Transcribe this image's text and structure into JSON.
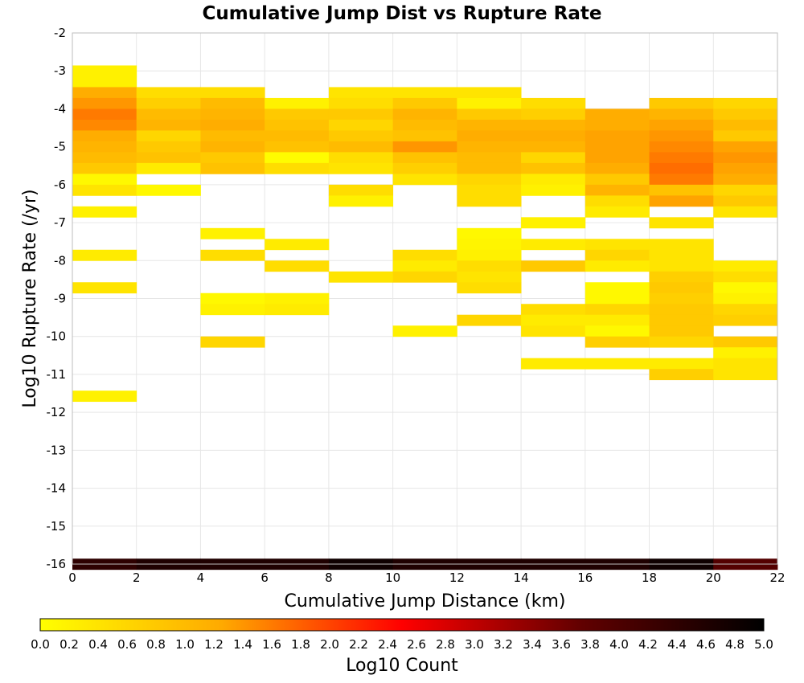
{
  "chart_data": {
    "type": "heatmap",
    "title": "Cumulative Jump Dist vs Rupture Rate",
    "xlabel": "Cumulative Jump Distance (km)",
    "ylabel": "Log10 Rupture Rate (/yr)",
    "xlim": [
      0,
      22
    ],
    "ylim": [
      -16,
      -2
    ],
    "xticks": [
      0,
      2,
      4,
      6,
      8,
      10,
      12,
      14,
      16,
      18,
      20,
      22
    ],
    "yticks": [
      -2,
      -3,
      -4,
      -5,
      -6,
      -7,
      -8,
      -9,
      -10,
      -11,
      -12,
      -13,
      -14,
      -15,
      -16
    ],
    "bin_width_x": 2,
    "bin_height_y": 0.286,
    "grid": true,
    "colorbar": {
      "label": "Log10 Count",
      "min": 0,
      "max": 5,
      "ticks": [
        "0.0",
        "0.2",
        "0.4",
        "0.6",
        "0.8",
        "1.0",
        "1.2",
        "1.4",
        "1.6",
        "1.8",
        "2.0",
        "2.2",
        "2.4",
        "2.6",
        "2.8",
        "3.0",
        "3.2",
        "3.4",
        "3.6",
        "3.8",
        "4.0",
        "4.2",
        "4.4",
        "4.6",
        "4.8",
        "5.0"
      ],
      "colormap": [
        "#ffff00",
        "#ffaa00",
        "#ff0000",
        "#600000",
        "#000000"
      ],
      "placement": "bottom"
    },
    "cells": [
      [
        0,
        -3,
        0.2
      ],
      [
        0,
        -3.286,
        0.2
      ],
      [
        0,
        -3.571,
        1.2
      ],
      [
        0,
        -3.857,
        1.4
      ],
      [
        0,
        -4.143,
        1.6
      ],
      [
        0,
        -4.429,
        1.5
      ],
      [
        0,
        -4.714,
        1.2
      ],
      [
        0,
        -5,
        1.1
      ],
      [
        0,
        -5.286,
        1.0
      ],
      [
        0,
        -5.571,
        0.8
      ],
      [
        0,
        -5.857,
        0.1
      ],
      [
        0,
        -6.143,
        0.4
      ],
      [
        0,
        -6.714,
        0.2
      ],
      [
        0,
        -7.857,
        0.3
      ],
      [
        0,
        -8.714,
        0.4
      ],
      [
        0,
        -11.571,
        0.2
      ],
      [
        2,
        -3.571,
        0.5
      ],
      [
        2,
        -3.857,
        0.7
      ],
      [
        2,
        -4.143,
        1.0
      ],
      [
        2,
        -4.429,
        1.1
      ],
      [
        2,
        -4.714,
        0.6
      ],
      [
        2,
        -5,
        0.8
      ],
      [
        2,
        -5.286,
        0.9
      ],
      [
        2,
        -5.571,
        0.3
      ],
      [
        2,
        -6.143,
        0.1
      ],
      [
        4,
        -3.571,
        0.5
      ],
      [
        4,
        -3.857,
        1.0
      ],
      [
        4,
        -4.143,
        1.1
      ],
      [
        4,
        -4.429,
        1.2
      ],
      [
        4,
        -4.714,
        1.0
      ],
      [
        4,
        -5,
        1.1
      ],
      [
        4,
        -5.286,
        0.8
      ],
      [
        4,
        -5.571,
        0.9
      ],
      [
        4,
        -7.286,
        0.2
      ],
      [
        4,
        -7.857,
        0.5
      ],
      [
        4,
        -9,
        0.1
      ],
      [
        4,
        -9.286,
        0.2
      ],
      [
        4,
        -10.143,
        0.6
      ],
      [
        6,
        -3.857,
        0.2
      ],
      [
        6,
        -4.143,
        0.8
      ],
      [
        6,
        -4.429,
        0.9
      ],
      [
        6,
        -4.714,
        1.0
      ],
      [
        6,
        -5,
        0.9
      ],
      [
        6,
        -5.286,
        0.05
      ],
      [
        6,
        -5.571,
        0.5
      ],
      [
        6,
        -7.571,
        0.3
      ],
      [
        6,
        -8.143,
        0.5
      ],
      [
        6,
        -9,
        0.2
      ],
      [
        6,
        -9.286,
        0.3
      ],
      [
        8,
        -3.571,
        0.4
      ],
      [
        8,
        -3.857,
        0.5
      ],
      [
        8,
        -4.143,
        0.8
      ],
      [
        8,
        -4.429,
        0.6
      ],
      [
        8,
        -4.714,
        0.8
      ],
      [
        8,
        -5,
        1.0
      ],
      [
        8,
        -5.286,
        0.5
      ],
      [
        8,
        -5.571,
        0.4
      ],
      [
        8,
        -6.143,
        0.5
      ],
      [
        8,
        -6.429,
        0.2
      ],
      [
        8,
        -8.429,
        0.4
      ],
      [
        10,
        -3.571,
        0.4
      ],
      [
        10,
        -3.857,
        0.8
      ],
      [
        10,
        -4.143,
        1.1
      ],
      [
        10,
        -4.429,
        1.0
      ],
      [
        10,
        -4.714,
        0.9
      ],
      [
        10,
        -5,
        1.4
      ],
      [
        10,
        -5.286,
        0.9
      ],
      [
        10,
        -5.571,
        0.7
      ],
      [
        10,
        -5.857,
        0.4
      ],
      [
        10,
        -7.857,
        0.5
      ],
      [
        10,
        -8.143,
        0.3
      ],
      [
        10,
        -8.429,
        0.6
      ],
      [
        10,
        -9.857,
        0.2
      ],
      [
        12,
        -3.571,
        0.4
      ],
      [
        12,
        -3.857,
        0.2
      ],
      [
        12,
        -4.143,
        0.8
      ],
      [
        12,
        -4.429,
        1.1
      ],
      [
        12,
        -4.714,
        1.2
      ],
      [
        12,
        -5,
        1.1
      ],
      [
        12,
        -5.286,
        1.0
      ],
      [
        12,
        -5.571,
        1.0
      ],
      [
        12,
        -5.857,
        0.6
      ],
      [
        12,
        -6.143,
        0.5
      ],
      [
        12,
        -6.429,
        0.5
      ],
      [
        12,
        -7.286,
        0.1
      ],
      [
        12,
        -7.571,
        0.15
      ],
      [
        12,
        -7.857,
        0.2
      ],
      [
        12,
        -8.143,
        0.5
      ],
      [
        12,
        -8.429,
        0.4
      ],
      [
        12,
        -8.714,
        0.5
      ],
      [
        12,
        -9.571,
        0.6
      ],
      [
        14,
        -3.857,
        0.5
      ],
      [
        14,
        -4.143,
        0.7
      ],
      [
        14,
        -4.429,
        1.1
      ],
      [
        14,
        -4.714,
        1.2
      ],
      [
        14,
        -5,
        1.1
      ],
      [
        14,
        -5.286,
        0.6
      ],
      [
        14,
        -5.571,
        0.9
      ],
      [
        14,
        -5.857,
        0.3
      ],
      [
        14,
        -6.143,
        0.2
      ],
      [
        14,
        -7,
        0.2
      ],
      [
        14,
        -7.571,
        0.3
      ],
      [
        14,
        -8.143,
        0.8
      ],
      [
        14,
        -9.286,
        0.5
      ],
      [
        14,
        -9.571,
        0.3
      ],
      [
        14,
        -9.857,
        0.4
      ],
      [
        14,
        -10.714,
        0.3
      ],
      [
        16,
        -4.143,
        1.2
      ],
      [
        16,
        -4.429,
        1.2
      ],
      [
        16,
        -4.714,
        1.3
      ],
      [
        16,
        -5,
        1.3
      ],
      [
        16,
        -5.286,
        1.3
      ],
      [
        16,
        -5.571,
        1.2
      ],
      [
        16,
        -5.857,
        0.8
      ],
      [
        16,
        -6.143,
        1.1
      ],
      [
        16,
        -6.429,
        0.5
      ],
      [
        16,
        -6.714,
        0.3
      ],
      [
        16,
        -7.571,
        0.4
      ],
      [
        16,
        -7.857,
        0.6
      ],
      [
        16,
        -8.143,
        0.3
      ],
      [
        16,
        -8.714,
        0.1
      ],
      [
        16,
        -9,
        0.1
      ],
      [
        16,
        -9.286,
        0.6
      ],
      [
        16,
        -9.571,
        0.3
      ],
      [
        16,
        -9.857,
        0.1
      ],
      [
        16,
        -10.143,
        0.7
      ],
      [
        16,
        -10.714,
        0.3
      ],
      [
        18,
        -3.857,
        0.8
      ],
      [
        18,
        -4.143,
        1.1
      ],
      [
        18,
        -4.429,
        1.3
      ],
      [
        18,
        -4.714,
        1.4
      ],
      [
        18,
        -5,
        1.5
      ],
      [
        18,
        -5.286,
        1.6
      ],
      [
        18,
        -5.571,
        1.7
      ],
      [
        18,
        -5.857,
        1.6
      ],
      [
        18,
        -6.143,
        0.9
      ],
      [
        18,
        -6.429,
        1.3
      ],
      [
        18,
        -7,
        0.4
      ],
      [
        18,
        -7.571,
        0.4
      ],
      [
        18,
        -7.857,
        0.4
      ],
      [
        18,
        -8.143,
        0.4
      ],
      [
        18,
        -8.429,
        0.7
      ],
      [
        18,
        -8.714,
        0.8
      ],
      [
        18,
        -9,
        0.7
      ],
      [
        18,
        -9.286,
        0.8
      ],
      [
        18,
        -9.571,
        0.8
      ],
      [
        18,
        -9.857,
        0.8
      ],
      [
        18,
        -10.143,
        0.6
      ],
      [
        18,
        -10.714,
        0.3
      ],
      [
        18,
        -11,
        0.7
      ],
      [
        20,
        -3.857,
        0.6
      ],
      [
        20,
        -4.143,
        0.8
      ],
      [
        20,
        -4.429,
        1.0
      ],
      [
        20,
        -4.714,
        0.8
      ],
      [
        20,
        -5,
        1.3
      ],
      [
        20,
        -5.286,
        1.4
      ],
      [
        20,
        -5.571,
        1.3
      ],
      [
        20,
        -5.857,
        1.2
      ],
      [
        20,
        -6.143,
        0.6
      ],
      [
        20,
        -6.429,
        0.8
      ],
      [
        20,
        -6.714,
        0.4
      ],
      [
        20,
        -8.143,
        0.3
      ],
      [
        20,
        -8.429,
        0.5
      ],
      [
        20,
        -8.714,
        0.1
      ],
      [
        20,
        -9,
        0.2
      ],
      [
        20,
        -9.286,
        0.6
      ],
      [
        20,
        -9.571,
        0.7
      ],
      [
        20,
        -10.143,
        0.8
      ],
      [
        20,
        -10.429,
        0.2
      ],
      [
        20,
        -10.714,
        0.4
      ],
      [
        20,
        -11,
        0.4
      ],
      [
        0,
        -16,
        4.4
      ],
      [
        2,
        -16,
        4.6
      ],
      [
        4,
        -16,
        4.6
      ],
      [
        6,
        -16,
        4.6
      ],
      [
        8,
        -16,
        4.8
      ],
      [
        10,
        -16,
        4.6
      ],
      [
        12,
        -16,
        4.6
      ],
      [
        14,
        -16,
        4.6
      ],
      [
        16,
        -16,
        4.6
      ],
      [
        18,
        -16,
        4.8
      ],
      [
        20,
        -16,
        3.9
      ]
    ]
  }
}
